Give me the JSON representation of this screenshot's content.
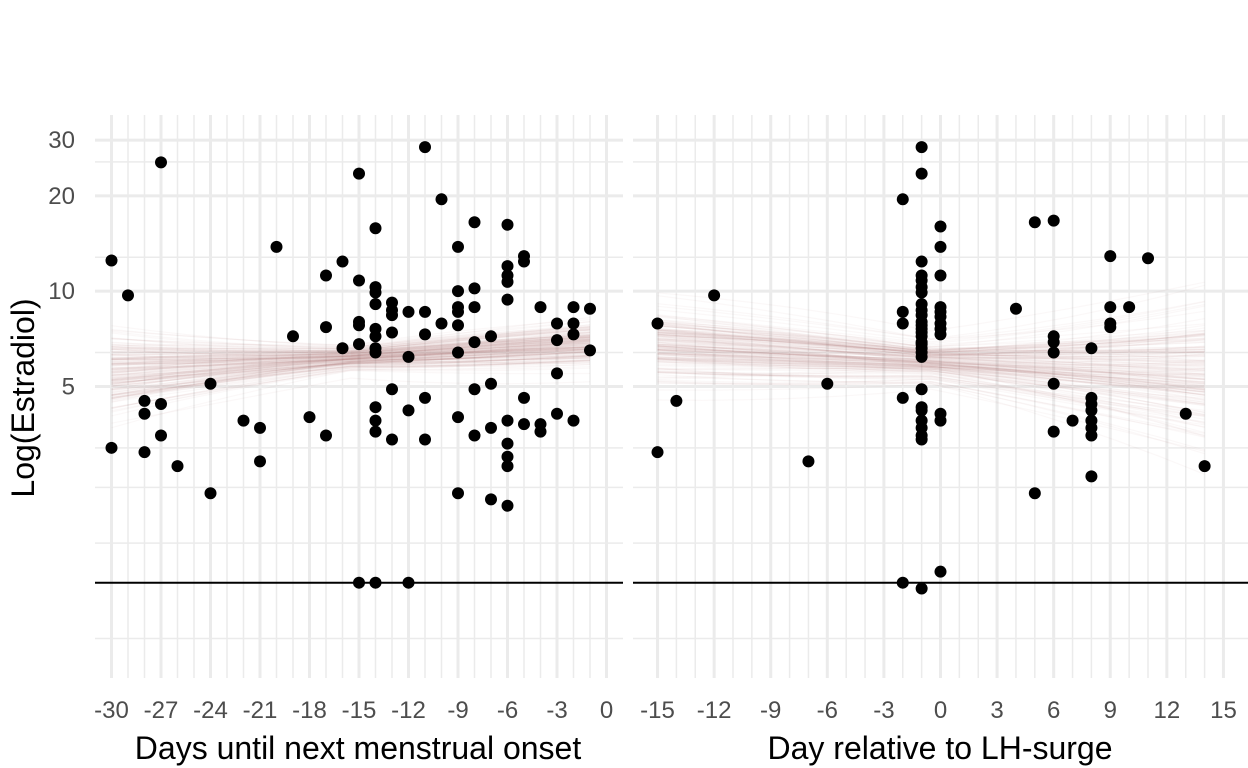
{
  "chart_data": [
    {
      "type": "scatter",
      "xlabel": "Days until next menstrual onset",
      "ylabel": "Log(Estradiol)",
      "scale_y": "log",
      "ylim": [
        0.6,
        36
      ],
      "xlim": [
        -31,
        1
      ],
      "x_ticks": [
        -30,
        -27,
        -24,
        -21,
        -18,
        -15,
        -12,
        -9,
        -6,
        -3,
        0
      ],
      "y_ticks": [
        5,
        10,
        20,
        30
      ],
      "grid": true,
      "reference_line_y": 1.2,
      "model_band": {
        "color": "#9c5a5a",
        "x_start": -30,
        "x_end": -1,
        "mean_start": 5.6,
        "mean_end": 6.8,
        "spread_start": 1.3,
        "spread_end": 1.15
      },
      "points": [
        {
          "x": -30,
          "y": 12.5
        },
        {
          "x": -30,
          "y": 3.2
        },
        {
          "x": -29,
          "y": 9.7
        },
        {
          "x": -28,
          "y": 4.5
        },
        {
          "x": -28,
          "y": 4.1
        },
        {
          "x": -28,
          "y": 3.1
        },
        {
          "x": -27,
          "y": 25.5
        },
        {
          "x": -27,
          "y": 4.4
        },
        {
          "x": -27,
          "y": 3.5
        },
        {
          "x": -26,
          "y": 2.8
        },
        {
          "x": -24,
          "y": 5.1
        },
        {
          "x": -24,
          "y": 2.3
        },
        {
          "x": -22,
          "y": 3.9
        },
        {
          "x": -21,
          "y": 3.7
        },
        {
          "x": -21,
          "y": 2.9
        },
        {
          "x": -20,
          "y": 13.8
        },
        {
          "x": -19,
          "y": 7.2
        },
        {
          "x": -18,
          "y": 4.0
        },
        {
          "x": -17,
          "y": 11.2
        },
        {
          "x": -17,
          "y": 7.7
        },
        {
          "x": -17,
          "y": 3.5
        },
        {
          "x": -16,
          "y": 12.4
        },
        {
          "x": -16,
          "y": 6.6
        },
        {
          "x": -15,
          "y": 23.5
        },
        {
          "x": -15,
          "y": 10.8
        },
        {
          "x": -15,
          "y": 8.0
        },
        {
          "x": -15,
          "y": 7.8
        },
        {
          "x": -15,
          "y": 6.8
        },
        {
          "x": -15,
          "y": 1.2
        },
        {
          "x": -14,
          "y": 15.8
        },
        {
          "x": -14,
          "y": 10.3
        },
        {
          "x": -14,
          "y": 9.9
        },
        {
          "x": -14,
          "y": 9.1
        },
        {
          "x": -14,
          "y": 7.6
        },
        {
          "x": -14,
          "y": 7.2
        },
        {
          "x": -14,
          "y": 6.6
        },
        {
          "x": -14,
          "y": 6.4
        },
        {
          "x": -14,
          "y": 4.3
        },
        {
          "x": -14,
          "y": 3.9
        },
        {
          "x": -14,
          "y": 3.6
        },
        {
          "x": -14,
          "y": 1.2
        },
        {
          "x": -13,
          "y": 9.2
        },
        {
          "x": -13,
          "y": 8.7
        },
        {
          "x": -13,
          "y": 8.4
        },
        {
          "x": -13,
          "y": 7.4
        },
        {
          "x": -13,
          "y": 4.9
        },
        {
          "x": -13,
          "y": 3.4
        },
        {
          "x": -12,
          "y": 8.6
        },
        {
          "x": -12,
          "y": 6.2
        },
        {
          "x": -12,
          "y": 4.2
        },
        {
          "x": -12,
          "y": 1.2
        },
        {
          "x": -11,
          "y": 28.5
        },
        {
          "x": -11,
          "y": 8.6
        },
        {
          "x": -11,
          "y": 7.3
        },
        {
          "x": -11,
          "y": 4.6
        },
        {
          "x": -11,
          "y": 3.4
        },
        {
          "x": -10,
          "y": 19.5
        },
        {
          "x": -10,
          "y": 7.9
        },
        {
          "x": -9,
          "y": 13.8
        },
        {
          "x": -9,
          "y": 10.0
        },
        {
          "x": -9,
          "y": 8.9
        },
        {
          "x": -9,
          "y": 8.6
        },
        {
          "x": -9,
          "y": 7.8
        },
        {
          "x": -9,
          "y": 6.4
        },
        {
          "x": -9,
          "y": 4.0
        },
        {
          "x": -9,
          "y": 2.3
        },
        {
          "x": -8,
          "y": 16.5
        },
        {
          "x": -8,
          "y": 10.2
        },
        {
          "x": -8,
          "y": 8.9
        },
        {
          "x": -8,
          "y": 6.9
        },
        {
          "x": -8,
          "y": 4.9
        },
        {
          "x": -8,
          "y": 3.5
        },
        {
          "x": -7,
          "y": 7.2
        },
        {
          "x": -7,
          "y": 5.1
        },
        {
          "x": -7,
          "y": 3.7
        },
        {
          "x": -7,
          "y": 2.2
        },
        {
          "x": -6,
          "y": 16.2
        },
        {
          "x": -6,
          "y": 12.0
        },
        {
          "x": -6,
          "y": 11.2
        },
        {
          "x": -6,
          "y": 10.7
        },
        {
          "x": -6,
          "y": 9.4
        },
        {
          "x": -6,
          "y": 3.9
        },
        {
          "x": -6,
          "y": 3.3
        },
        {
          "x": -6,
          "y": 3.0
        },
        {
          "x": -6,
          "y": 2.8
        },
        {
          "x": -6,
          "y": 2.1
        },
        {
          "x": -5,
          "y": 12.9
        },
        {
          "x": -5,
          "y": 12.4
        },
        {
          "x": -5,
          "y": 4.6
        },
        {
          "x": -5,
          "y": 3.8
        },
        {
          "x": -4,
          "y": 8.9
        },
        {
          "x": -4,
          "y": 3.8
        },
        {
          "x": -4,
          "y": 3.6
        },
        {
          "x": -3,
          "y": 7.9
        },
        {
          "x": -3,
          "y": 7.0
        },
        {
          "x": -3,
          "y": 5.5
        },
        {
          "x": -3,
          "y": 4.1
        },
        {
          "x": -2,
          "y": 8.9
        },
        {
          "x": -2,
          "y": 7.9
        },
        {
          "x": -2,
          "y": 7.3
        },
        {
          "x": -2,
          "y": 3.9
        },
        {
          "x": -1,
          "y": 8.8
        },
        {
          "x": -1,
          "y": 6.5
        }
      ]
    },
    {
      "type": "scatter",
      "xlabel": "Day relative to LH-surge",
      "ylabel": "",
      "scale_y": "log",
      "ylim": [
        0.6,
        36
      ],
      "xlim": [
        -16.3,
        16.3
      ],
      "x_ticks": [
        -15,
        -12,
        -9,
        -6,
        -3,
        0,
        3,
        6,
        9,
        12,
        15
      ],
      "y_ticks": [
        5,
        10,
        20,
        30
      ],
      "grid": true,
      "reference_line_y": 1.2,
      "model_band": {
        "color": "#9c5a5a",
        "x_start": -15,
        "x_end": 14,
        "mean_start": 6.6,
        "mean_end": 5.4,
        "spread_start": 1.25,
        "spread_end": 1.5
      },
      "points": [
        {
          "x": -15,
          "y": 7.9
        },
        {
          "x": -15,
          "y": 3.1
        },
        {
          "x": -14,
          "y": 4.5
        },
        {
          "x": -12,
          "y": 9.7
        },
        {
          "x": -7,
          "y": 2.9
        },
        {
          "x": -6,
          "y": 5.1
        },
        {
          "x": -2,
          "y": 19.5
        },
        {
          "x": -2,
          "y": 8.6
        },
        {
          "x": -2,
          "y": 7.9
        },
        {
          "x": -2,
          "y": 4.6
        },
        {
          "x": -2,
          "y": 1.2
        },
        {
          "x": -1,
          "y": 28.5
        },
        {
          "x": -1,
          "y": 23.5
        },
        {
          "x": -1,
          "y": 12.4
        },
        {
          "x": -1,
          "y": 11.2
        },
        {
          "x": -1,
          "y": 10.8
        },
        {
          "x": -1,
          "y": 10.3
        },
        {
          "x": -1,
          "y": 9.9
        },
        {
          "x": -1,
          "y": 9.1
        },
        {
          "x": -1,
          "y": 8.7
        },
        {
          "x": -1,
          "y": 8.4
        },
        {
          "x": -1,
          "y": 8.0
        },
        {
          "x": -1,
          "y": 7.8
        },
        {
          "x": -1,
          "y": 7.6
        },
        {
          "x": -1,
          "y": 7.4
        },
        {
          "x": -1,
          "y": 7.2
        },
        {
          "x": -1,
          "y": 6.9
        },
        {
          "x": -1,
          "y": 6.8
        },
        {
          "x": -1,
          "y": 6.6
        },
        {
          "x": -1,
          "y": 6.4
        },
        {
          "x": -1,
          "y": 6.2
        },
        {
          "x": -1,
          "y": 4.9
        },
        {
          "x": -1,
          "y": 4.3
        },
        {
          "x": -1,
          "y": 4.2
        },
        {
          "x": -1,
          "y": 3.9
        },
        {
          "x": -1,
          "y": 3.7
        },
        {
          "x": -1,
          "y": 3.5
        },
        {
          "x": -1,
          "y": 3.4
        },
        {
          "x": -1,
          "y": 1.15
        },
        {
          "x": 0,
          "y": 16.0
        },
        {
          "x": 0,
          "y": 13.8
        },
        {
          "x": 0,
          "y": 11.2
        },
        {
          "x": 0,
          "y": 8.9
        },
        {
          "x": 0,
          "y": 8.6
        },
        {
          "x": 0,
          "y": 8.3
        },
        {
          "x": 0,
          "y": 7.9
        },
        {
          "x": 0,
          "y": 7.6
        },
        {
          "x": 0,
          "y": 7.3
        },
        {
          "x": 0,
          "y": 4.1
        },
        {
          "x": 0,
          "y": 3.9
        },
        {
          "x": 0,
          "y": 1.3
        },
        {
          "x": 4,
          "y": 8.8
        },
        {
          "x": 5,
          "y": 16.5
        },
        {
          "x": 5,
          "y": 2.3
        },
        {
          "x": 6,
          "y": 16.7
        },
        {
          "x": 6,
          "y": 7.2
        },
        {
          "x": 6,
          "y": 6.9
        },
        {
          "x": 6,
          "y": 6.4
        },
        {
          "x": 6,
          "y": 5.1
        },
        {
          "x": 6,
          "y": 3.6
        },
        {
          "x": 7,
          "y": 3.9
        },
        {
          "x": 8,
          "y": 6.6
        },
        {
          "x": 8,
          "y": 4.6
        },
        {
          "x": 8,
          "y": 4.4
        },
        {
          "x": 8,
          "y": 4.2
        },
        {
          "x": 8,
          "y": 3.9
        },
        {
          "x": 8,
          "y": 3.7
        },
        {
          "x": 8,
          "y": 3.5
        },
        {
          "x": 8,
          "y": 2.6
        },
        {
          "x": 9,
          "y": 12.9
        },
        {
          "x": 9,
          "y": 8.9
        },
        {
          "x": 9,
          "y": 7.9
        },
        {
          "x": 9,
          "y": 7.7
        },
        {
          "x": 10,
          "y": 8.9
        },
        {
          "x": 11,
          "y": 12.7
        },
        {
          "x": 13,
          "y": 4.1
        },
        {
          "x": 14,
          "y": 2.8
        }
      ]
    }
  ]
}
